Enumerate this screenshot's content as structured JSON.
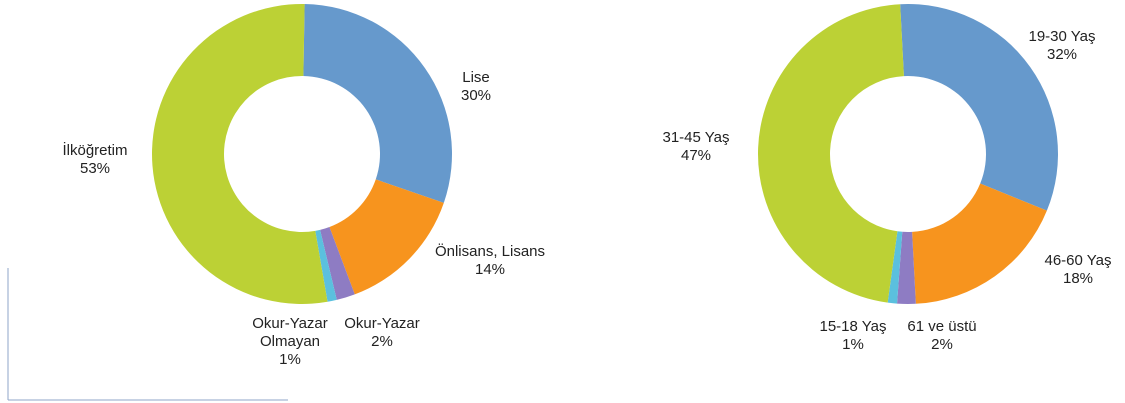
{
  "chart_data": [
    {
      "type": "pie",
      "donut": true,
      "title": "",
      "categories": [
        "Lise",
        "Önlisans, Lisans",
        "Okur-Yazar",
        "Okur-Yazar Olmayan",
        "İlköğretim"
      ],
      "values": [
        30,
        14,
        2,
        1,
        53
      ],
      "display_labels": [
        [
          "Lise",
          "30%"
        ],
        [
          "Önlisans, Lisans",
          "14%"
        ],
        [
          "Okur-Yazar",
          "2%"
        ],
        [
          "Okur-Yazar",
          "Olmayan",
          "1%"
        ],
        [
          "İlköğretim",
          "53%"
        ]
      ],
      "colors": [
        "#6699cc",
        "#f7941e",
        "#8e7cc3",
        "#5bc0de",
        "#bcd135"
      ],
      "legend": "none"
    },
    {
      "type": "pie",
      "donut": true,
      "title": "",
      "categories": [
        "19-30 Yaş",
        "46-60 Yaş",
        "61 ve üstü",
        "15-18 Yaş",
        "31-45 Yaş"
      ],
      "values": [
        32,
        18,
        2,
        1,
        47
      ],
      "display_labels": [
        [
          "19-30 Yaş",
          "32%"
        ],
        [
          "46-60 Yaş",
          "18%"
        ],
        [
          "61 ve üstü",
          "2%"
        ],
        [
          "15-18 Yaş",
          "1%"
        ],
        [
          "31-45 Yaş",
          "47%"
        ]
      ],
      "colors": [
        "#6699cc",
        "#f7941e",
        "#8e7cc3",
        "#5bc0de",
        "#bcd135"
      ],
      "legend": "none"
    }
  ]
}
